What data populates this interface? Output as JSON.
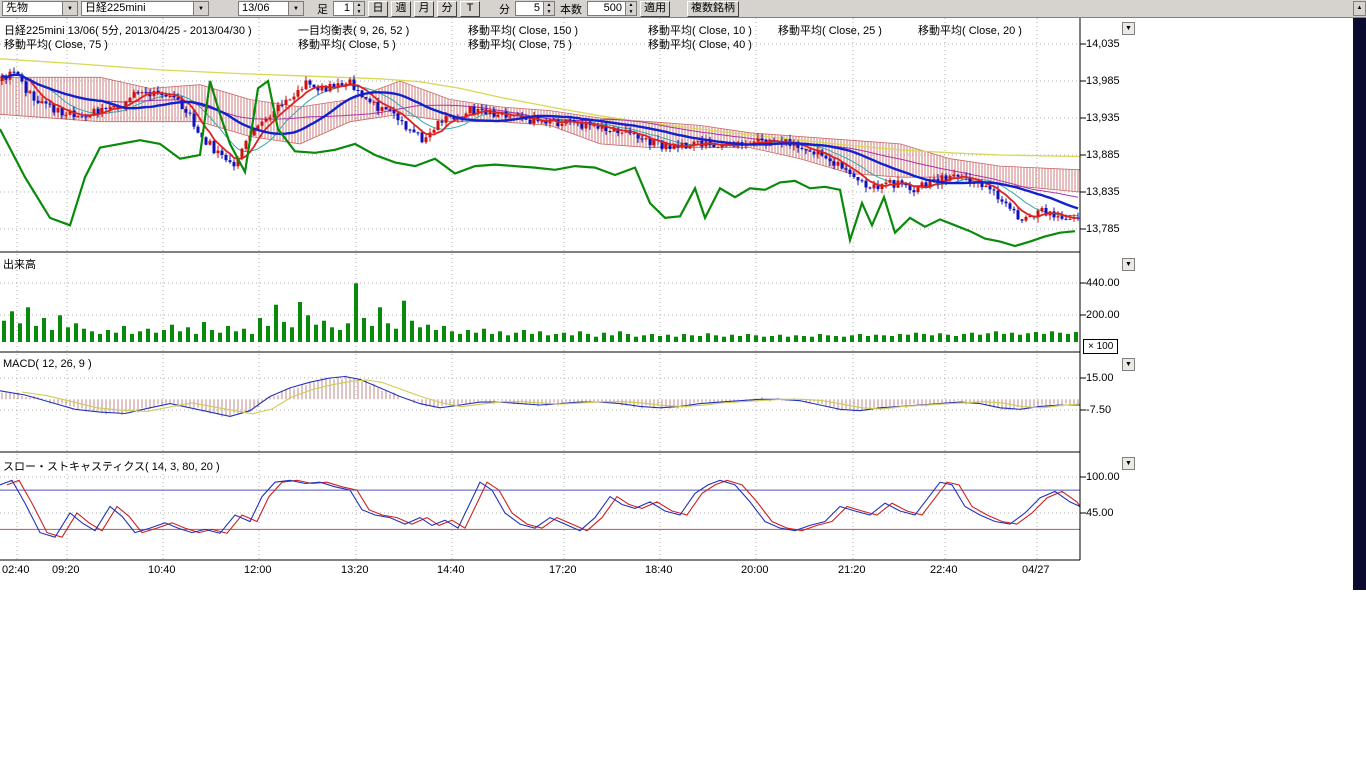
{
  "icons": {
    "dropdown": "▼",
    "spin_up": "▲",
    "spin_down": "▼",
    "scroll_up": "▲"
  },
  "toolbar": {
    "category_value": "先物",
    "symbol_value": "日経225mini",
    "contract_value": "13/06",
    "bar_label": "足",
    "bar_value": "1",
    "period_buttons": [
      "日",
      "週",
      "月",
      "分",
      "T"
    ],
    "minute_label": "分",
    "minute_value": "5",
    "count_label": "本数",
    "count_value": "500",
    "apply_label": "適用",
    "multi_symbol_label": "複数銘柄"
  },
  "chart": {
    "legend_line1": [
      "日経225mini 13/06( 5分, 2013/04/25 - 2013/04/30 )",
      "一目均衡表( 9, 26, 52 )",
      "移動平均( Close, 150 )",
      "移動平均( Close, 10 )",
      "移動平均( Close, 25 )",
      "移動平均( Close, 20 )"
    ],
    "legend_line2": [
      "移動平均( Close, 75 )",
      "移動平均( Close, 5 )",
      "移動平均( Close, 75 )",
      "移動平均( Close, 40 )"
    ],
    "volume_title": "出来高",
    "volume_multiplier": "× 100",
    "macd_title": "MACD( 12, 26, 9 )",
    "stoch_title": "スロー・ストキャスティクス( 14, 3, 80, 20 )"
  },
  "chart_data": {
    "type": "candlestick",
    "title": "日経225mini 13/06( 5分, 2013/04/25 - 2013/04/30 )",
    "bars": 500,
    "axes": {
      "price": {
        "labels": [
          "14,035",
          "13,985",
          "13,935",
          "13,885",
          "13,835",
          "13,785"
        ],
        "y": [
          44,
          81,
          118,
          155,
          192,
          229
        ]
      },
      "volume": {
        "labels": [
          "440.00",
          "200.00"
        ],
        "y": [
          283,
          315
        ]
      },
      "macd": {
        "labels": [
          "15.00",
          "-7.50"
        ],
        "y": [
          378,
          410
        ]
      },
      "stoch": {
        "labels": [
          "100.00",
          "45.00"
        ],
        "y": [
          477,
          513
        ]
      },
      "time": {
        "labels": [
          "02:40",
          "09:20",
          "10:40",
          "12:00",
          "13:20",
          "14:40",
          "17:20",
          "18:40",
          "20:00",
          "21:20",
          "22:40",
          "04/27"
        ],
        "x": [
          2,
          52,
          148,
          244,
          341,
          437,
          549,
          645,
          741,
          838,
          930,
          1022
        ]
      }
    },
    "price_gridlines": [
      14035,
      13985,
      13935,
      13885,
      13835,
      13785
    ],
    "stoch_levels": [
      80,
      20
    ],
    "close_path": [
      [
        0,
        13985
      ],
      [
        15,
        13995
      ],
      [
        30,
        13965
      ],
      [
        45,
        13950
      ],
      [
        60,
        13945
      ],
      [
        80,
        13935
      ],
      [
        100,
        13945
      ],
      [
        120,
        13955
      ],
      [
        140,
        13970
      ],
      [
        160,
        13970
      ],
      [
        175,
        13965
      ],
      [
        190,
        13935
      ],
      [
        205,
        13905
      ],
      [
        220,
        13885
      ],
      [
        232,
        13870
      ],
      [
        245,
        13900
      ],
      [
        260,
        13930
      ],
      [
        275,
        13945
      ],
      [
        290,
        13965
      ],
      [
        305,
        13980
      ],
      [
        320,
        13975
      ],
      [
        335,
        13980
      ],
      [
        350,
        13985
      ],
      [
        365,
        13960
      ],
      [
        380,
        13945
      ],
      [
        395,
        13940
      ],
      [
        410,
        13920
      ],
      [
        425,
        13905
      ],
      [
        440,
        13930
      ],
      [
        455,
        13935
      ],
      [
        470,
        13945
      ],
      [
        485,
        13940
      ],
      [
        500,
        13938
      ],
      [
        520,
        13935
      ],
      [
        540,
        13930
      ],
      [
        560,
        13928
      ],
      [
        580,
        13925
      ],
      [
        600,
        13925
      ],
      [
        620,
        13918
      ],
      [
        640,
        13910
      ],
      [
        655,
        13900
      ],
      [
        670,
        13895
      ],
      [
        690,
        13900
      ],
      [
        710,
        13902
      ],
      [
        730,
        13900
      ],
      [
        750,
        13900
      ],
      [
        770,
        13903
      ],
      [
        790,
        13900
      ],
      [
        810,
        13893
      ],
      [
        825,
        13885
      ],
      [
        840,
        13870
      ],
      [
        855,
        13855
      ],
      [
        870,
        13843
      ],
      [
        885,
        13845
      ],
      [
        900,
        13848
      ],
      [
        915,
        13840
      ],
      [
        930,
        13848
      ],
      [
        945,
        13853
      ],
      [
        960,
        13855
      ],
      [
        975,
        13850
      ],
      [
        990,
        13840
      ],
      [
        1005,
        13815
      ],
      [
        1015,
        13805
      ],
      [
        1025,
        13800
      ],
      [
        1040,
        13810
      ],
      [
        1055,
        13805
      ],
      [
        1070,
        13800
      ],
      [
        1080,
        13800
      ]
    ],
    "ma_green": [
      [
        0,
        13920
      ],
      [
        25,
        13855
      ],
      [
        50,
        13800
      ],
      [
        70,
        13790
      ],
      [
        85,
        13855
      ],
      [
        100,
        13895
      ],
      [
        120,
        13900
      ],
      [
        140,
        13905
      ],
      [
        160,
        13900
      ],
      [
        180,
        13880
      ],
      [
        200,
        13885
      ],
      [
        210,
        13985
      ],
      [
        220,
        13940
      ],
      [
        230,
        13900
      ],
      [
        245,
        13862
      ],
      [
        258,
        13975
      ],
      [
        268,
        13985
      ],
      [
        278,
        13920
      ],
      [
        295,
        13890
      ],
      [
        315,
        13888
      ],
      [
        335,
        13892
      ],
      [
        355,
        13900
      ],
      [
        375,
        13885
      ],
      [
        395,
        13875
      ],
      [
        415,
        13870
      ],
      [
        435,
        13880
      ],
      [
        455,
        13860
      ],
      [
        475,
        13870
      ],
      [
        495,
        13872
      ],
      [
        515,
        13870
      ],
      [
        535,
        13868
      ],
      [
        555,
        13865
      ],
      [
        575,
        13870
      ],
      [
        595,
        13868
      ],
      [
        615,
        13858
      ],
      [
        635,
        13868
      ],
      [
        650,
        13820
      ],
      [
        665,
        13800
      ],
      [
        680,
        13802
      ],
      [
        695,
        13840
      ],
      [
        705,
        13800
      ],
      [
        720,
        13840
      ],
      [
        735,
        13828
      ],
      [
        750,
        13840
      ],
      [
        765,
        13838
      ],
      [
        780,
        13848
      ],
      [
        795,
        13850
      ],
      [
        810,
        13840
      ],
      [
        825,
        13842
      ],
      [
        840,
        13838
      ],
      [
        850,
        13770
      ],
      [
        862,
        13820
      ],
      [
        872,
        13790
      ],
      [
        884,
        13828
      ],
      [
        895,
        13780
      ],
      [
        910,
        13800
      ],
      [
        925,
        13788
      ],
      [
        940,
        13798
      ],
      [
        955,
        13790
      ],
      [
        970,
        13782
      ],
      [
        985,
        13772
      ],
      [
        1000,
        13768
      ],
      [
        1015,
        13762
      ],
      [
        1030,
        13768
      ],
      [
        1045,
        13775
      ],
      [
        1060,
        13780
      ],
      [
        1075,
        13782
      ]
    ],
    "ma_yellow": [
      [
        0,
        14015
      ],
      [
        80,
        14008
      ],
      [
        160,
        14000
      ],
      [
        240,
        13995
      ],
      [
        300,
        13992
      ],
      [
        340,
        13990
      ],
      [
        380,
        13988
      ],
      [
        420,
        13984
      ],
      [
        460,
        13975
      ],
      [
        500,
        13963
      ],
      [
        550,
        13950
      ],
      [
        600,
        13938
      ],
      [
        650,
        13928
      ],
      [
        700,
        13920
      ],
      [
        750,
        13912
      ],
      [
        800,
        13905
      ],
      [
        850,
        13898
      ],
      [
        900,
        13892
      ],
      [
        950,
        13888
      ],
      [
        1000,
        13885
      ],
      [
        1080,
        13883
      ]
    ],
    "cloud_top": [
      [
        0,
        13990
      ],
      [
        100,
        13990
      ],
      [
        150,
        13975
      ],
      [
        200,
        13980
      ],
      [
        250,
        13960
      ],
      [
        300,
        13950
      ],
      [
        350,
        13960
      ],
      [
        400,
        13985
      ],
      [
        450,
        13960
      ],
      [
        500,
        13950
      ],
      [
        550,
        13945
      ],
      [
        600,
        13935
      ],
      [
        650,
        13930
      ],
      [
        700,
        13925
      ],
      [
        750,
        13915
      ],
      [
        800,
        13910
      ],
      [
        850,
        13905
      ],
      [
        900,
        13900
      ],
      [
        950,
        13880
      ],
      [
        1000,
        13870
      ],
      [
        1080,
        13865
      ]
    ],
    "cloud_bottom": [
      [
        0,
        13940
      ],
      [
        100,
        13930
      ],
      [
        150,
        13930
      ],
      [
        200,
        13930
      ],
      [
        250,
        13910
      ],
      [
        300,
        13900
      ],
      [
        350,
        13930
      ],
      [
        400,
        13940
      ],
      [
        450,
        13930
      ],
      [
        500,
        13930
      ],
      [
        550,
        13925
      ],
      [
        600,
        13900
      ],
      [
        650,
        13895
      ],
      [
        700,
        13895
      ],
      [
        750,
        13895
      ],
      [
        800,
        13880
      ],
      [
        850,
        13860
      ],
      [
        900,
        13855
      ],
      [
        950,
        13855
      ],
      [
        1000,
        13845
      ],
      [
        1080,
        13835
      ]
    ],
    "volume": [
      160,
      230,
      140,
      260,
      120,
      180,
      90,
      200,
      110,
      140,
      100,
      80,
      60,
      90,
      70,
      120,
      60,
      80,
      100,
      70,
      90,
      130,
      80,
      110,
      60,
      150,
      90,
      70,
      120,
      80,
      100,
      60,
      180,
      120,
      280,
      150,
      110,
      300,
      200,
      130,
      160,
      110,
      90,
      140,
      440,
      180,
      120,
      260,
      140,
      100,
      310,
      160,
      110,
      130,
      90,
      120,
      80,
      60,
      90,
      70,
      100,
      60,
      80,
      50,
      70,
      90,
      60,
      80,
      50,
      60,
      70,
      50,
      80,
      60,
      40,
      70,
      50,
      80,
      60,
      40,
      50,
      60,
      45,
      55,
      40,
      60,
      50,
      45,
      65,
      50,
      40,
      55,
      45,
      60,
      50,
      40,
      45,
      55,
      40,
      50,
      45,
      40,
      60,
      50,
      45,
      40,
      50,
      60,
      45,
      55,
      50,
      45,
      60,
      55,
      70,
      60,
      50,
      65,
      55,
      45,
      60,
      70,
      55,
      65,
      80,
      60,
      70,
      55,
      65,
      75,
      60,
      80,
      70,
      60,
      75
    ],
    "macd_line": [
      [
        0,
        6
      ],
      [
        25,
        3
      ],
      [
        50,
        -2
      ],
      [
        75,
        -7
      ],
      [
        100,
        -9
      ],
      [
        125,
        -10
      ],
      [
        150,
        -6
      ],
      [
        170,
        -3
      ],
      [
        190,
        -6
      ],
      [
        210,
        -9
      ],
      [
        230,
        -12
      ],
      [
        250,
        -8
      ],
      [
        270,
        2
      ],
      [
        290,
        8
      ],
      [
        310,
        12
      ],
      [
        330,
        15
      ],
      [
        345,
        16
      ],
      [
        360,
        14
      ],
      [
        380,
        8
      ],
      [
        400,
        2
      ],
      [
        420,
        -3
      ],
      [
        440,
        -6
      ],
      [
        460,
        -4
      ],
      [
        480,
        -2
      ],
      [
        500,
        -2
      ],
      [
        520,
        -3
      ],
      [
        540,
        -4
      ],
      [
        560,
        -3
      ],
      [
        580,
        -2
      ],
      [
        600,
        -2
      ],
      [
        620,
        -3
      ],
      [
        640,
        -5
      ],
      [
        660,
        -6
      ],
      [
        680,
        -5
      ],
      [
        700,
        -3
      ],
      [
        720,
        -2
      ],
      [
        740,
        -1
      ],
      [
        760,
        0
      ],
      [
        780,
        0
      ],
      [
        800,
        -1
      ],
      [
        820,
        -4
      ],
      [
        840,
        -7
      ],
      [
        860,
        -8
      ],
      [
        880,
        -6
      ],
      [
        900,
        -5
      ],
      [
        920,
        -4
      ],
      [
        940,
        -3
      ],
      [
        960,
        -2
      ],
      [
        980,
        -3
      ],
      [
        1000,
        -6
      ],
      [
        1020,
        -7
      ],
      [
        1040,
        -5
      ],
      [
        1060,
        -4
      ],
      [
        1080,
        -4
      ]
    ],
    "stoch_line": [
      [
        0,
        88
      ],
      [
        12,
        95
      ],
      [
        25,
        60
      ],
      [
        40,
        15
      ],
      [
        55,
        8
      ],
      [
        70,
        45
      ],
      [
        82,
        30
      ],
      [
        95,
        18
      ],
      [
        110,
        55
      ],
      [
        122,
        40
      ],
      [
        135,
        15
      ],
      [
        150,
        22
      ],
      [
        165,
        30
      ],
      [
        178,
        22
      ],
      [
        192,
        15
      ],
      [
        205,
        20
      ],
      [
        220,
        14
      ],
      [
        235,
        42
      ],
      [
        250,
        32
      ],
      [
        262,
        70
      ],
      [
        275,
        92
      ],
      [
        290,
        95
      ],
      [
        305,
        90
      ],
      [
        320,
        92
      ],
      [
        335,
        85
      ],
      [
        350,
        80
      ],
      [
        362,
        50
      ],
      [
        375,
        42
      ],
      [
        390,
        38
      ],
      [
        405,
        28
      ],
      [
        420,
        38
      ],
      [
        432,
        26
      ],
      [
        445,
        34
      ],
      [
        458,
        22
      ],
      [
        470,
        60
      ],
      [
        480,
        92
      ],
      [
        492,
        80
      ],
      [
        505,
        45
      ],
      [
        520,
        28
      ],
      [
        535,
        22
      ],
      [
        550,
        38
      ],
      [
        565,
        28
      ],
      [
        580,
        18
      ],
      [
        595,
        38
      ],
      [
        610,
        70
      ],
      [
        622,
        58
      ],
      [
        635,
        52
      ],
      [
        650,
        62
      ],
      [
        665,
        48
      ],
      [
        680,
        42
      ],
      [
        695,
        75
      ],
      [
        708,
        88
      ],
      [
        720,
        95
      ],
      [
        735,
        88
      ],
      [
        750,
        62
      ],
      [
        765,
        32
      ],
      [
        780,
        22
      ],
      [
        795,
        18
      ],
      [
        810,
        26
      ],
      [
        825,
        32
      ],
      [
        840,
        55
      ],
      [
        855,
        48
      ],
      [
        870,
        42
      ],
      [
        885,
        60
      ],
      [
        900,
        48
      ],
      [
        915,
        42
      ],
      [
        928,
        68
      ],
      [
        940,
        92
      ],
      [
        952,
        88
      ],
      [
        965,
        55
      ],
      [
        980,
        42
      ],
      [
        995,
        32
      ],
      [
        1010,
        28
      ],
      [
        1025,
        45
      ],
      [
        1040,
        68
      ],
      [
        1055,
        78
      ],
      [
        1070,
        62
      ],
      [
        1080,
        55
      ]
    ]
  }
}
